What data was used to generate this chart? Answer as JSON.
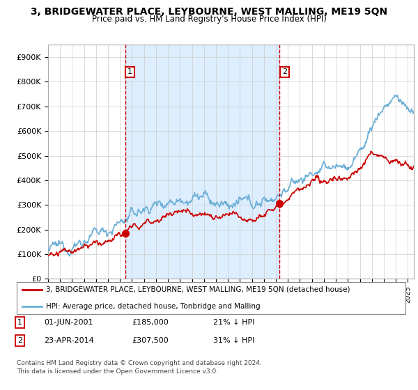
{
  "title": "3, BRIDGEWATER PLACE, LEYBOURNE, WEST MALLING, ME19 5QN",
  "subtitle": "Price paid vs. HM Land Registry's House Price Index (HPI)",
  "title_fontsize": 10,
  "subtitle_fontsize": 8.5,
  "ylabel_ticks": [
    "£0",
    "£100K",
    "£200K",
    "£300K",
    "£400K",
    "£500K",
    "£600K",
    "£700K",
    "£800K",
    "£900K"
  ],
  "ytick_values": [
    0,
    100000,
    200000,
    300000,
    400000,
    500000,
    600000,
    700000,
    800000,
    900000
  ],
  "ylim": [
    0,
    950000
  ],
  "hpi_color": "#6baed6",
  "price_color": "#cc0000",
  "dashed_line_color": "#cc0000",
  "shade_color": "#ddeeff",
  "marker1_date": 2001.42,
  "marker1_price": 185000,
  "marker2_date": 2014.31,
  "marker2_price": 307500,
  "legend_property": "3, BRIDGEWATER PLACE, LEYBOURNE, WEST MALLING, ME19 5QN (detached house)",
  "legend_hpi": "HPI: Average price, detached house, Tonbridge and Malling",
  "footnote1": "Contains HM Land Registry data © Crown copyright and database right 2024.",
  "footnote2": "This data is licensed under the Open Government Licence v3.0.",
  "table_row1": [
    "1",
    "01-JUN-2001",
    "£185,000",
    "21% ↓ HPI"
  ],
  "table_row2": [
    "2",
    "23-APR-2014",
    "£307,500",
    "31% ↓ HPI"
  ],
  "background_color": "#ffffff",
  "grid_color": "#cccccc"
}
